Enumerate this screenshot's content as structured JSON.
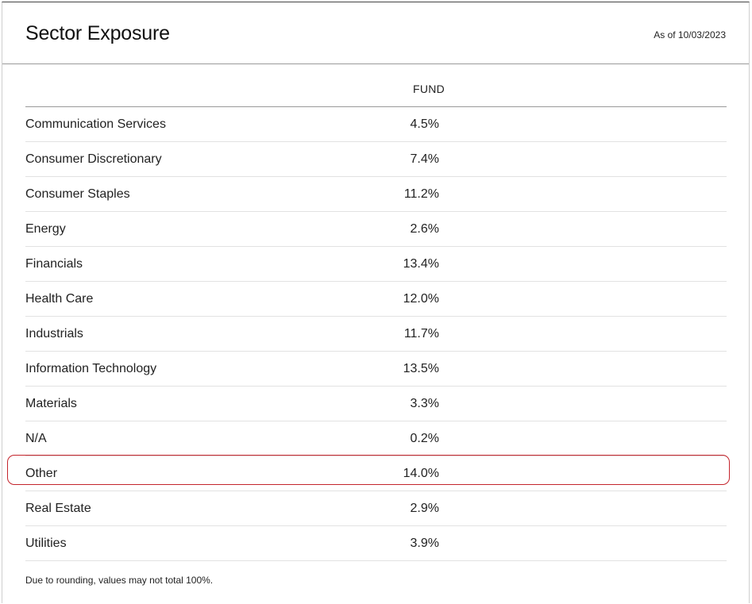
{
  "header": {
    "title": "Sector Exposure",
    "as_of": "As of 10/03/2023"
  },
  "table": {
    "column_header": "FUND",
    "rows": [
      {
        "sector": "Communication Services",
        "fund": "4.5%"
      },
      {
        "sector": "Consumer Discretionary",
        "fund": "7.4%"
      },
      {
        "sector": "Consumer Staples",
        "fund": "11.2%"
      },
      {
        "sector": "Energy",
        "fund": "2.6%"
      },
      {
        "sector": "Financials",
        "fund": "13.4%"
      },
      {
        "sector": "Health Care",
        "fund": "12.0%"
      },
      {
        "sector": "Industrials",
        "fund": "11.7%"
      },
      {
        "sector": "Information Technology",
        "fund": "13.5%"
      },
      {
        "sector": "Materials",
        "fund": "3.3%"
      },
      {
        "sector": "N/A",
        "fund": "0.2%"
      },
      {
        "sector": "Other",
        "fund": "14.0%"
      },
      {
        "sector": "Real Estate",
        "fund": "2.9%"
      },
      {
        "sector": "Utilities",
        "fund": "3.9%"
      }
    ],
    "highlighted_row": "Other"
  },
  "footnote": "Due to rounding, values may not total 100%.",
  "colors": {
    "highlight_border": "#c4242c",
    "text": "#222222",
    "rule": "#9a9a9a"
  }
}
